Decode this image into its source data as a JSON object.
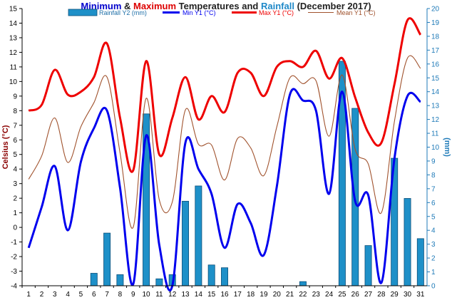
{
  "title": {
    "part1": "Minimum",
    "part2": " & ",
    "part3": "Maximum",
    "part4": " Temperatures and ",
    "part5": "Rainfall",
    "part6": " (December 2017)"
  },
  "colors": {
    "min": "#0000ee",
    "max": "#ee0000",
    "mean": "#a0522d",
    "rain": "#1e90c8",
    "rain_stroke": "#0b4f7a",
    "rain_axis": "#1e7ab8",
    "title_min": "#0000cc",
    "title_max": "#dd0000",
    "title_rain": "#1e88c8",
    "title_dark": "#222222"
  },
  "chart_data": {
    "type": "bar+line",
    "x": [
      1,
      2,
      3,
      4,
      5,
      6,
      7,
      8,
      9,
      10,
      11,
      12,
      13,
      14,
      15,
      16,
      17,
      18,
      19,
      20,
      21,
      22,
      23,
      24,
      25,
      26,
      27,
      28,
      29,
      30,
      31
    ],
    "y_left_label": "Celsius (°C)",
    "y_right_label": "(mm)",
    "y_left_range": [
      -4,
      15
    ],
    "y_right_range": [
      0,
      20
    ],
    "y_left_ticks": [
      -4,
      -3,
      -2,
      -1,
      0,
      1,
      2,
      3,
      4,
      5,
      6,
      7,
      8,
      9,
      10,
      11,
      12,
      13,
      14,
      15
    ],
    "y_right_ticks": [
      0,
      1,
      2,
      3,
      4,
      5,
      6,
      7,
      8,
      9,
      10,
      11,
      12,
      13,
      14,
      15,
      16,
      17,
      18,
      19,
      20
    ],
    "grid": false,
    "legend_position": "top",
    "legend": {
      "rain": "Rainfall Y2 (mm)",
      "min": "Min Y1 (°C)",
      "max": "Max Y1 (°C)",
      "mean": "Mean Y1 (°C)"
    },
    "rainfall_mm": [
      0,
      0,
      0,
      0,
      0,
      0.9,
      3.8,
      0.8,
      0,
      12.4,
      0.5,
      0.8,
      6.1,
      7.2,
      1.5,
      1.3,
      0,
      0,
      0,
      0,
      0,
      0.3,
      0,
      0,
      16.2,
      12.8,
      2.9,
      0,
      9.2,
      6.3,
      3.4
    ],
    "min_temp": [
      -1.4,
      1.4,
      4.2,
      -0.2,
      4.5,
      6.8,
      8.0,
      2.7,
      -3.9,
      6.3,
      -1.2,
      -4.0,
      5.8,
      4.0,
      2.3,
      -1.4,
      1.6,
      0.3,
      -1.9,
      2.8,
      9.1,
      8.7,
      8.0,
      2.3,
      9.3,
      1.8,
      2.2,
      -3.8,
      4.7,
      9.0,
      8.6
    ],
    "max_temp": [
      8.0,
      8.4,
      10.8,
      9.1,
      9.3,
      10.3,
      12.6,
      7.5,
      3.9,
      11.4,
      5.0,
      7.5,
      10.3,
      7.4,
      9.0,
      7.9,
      10.6,
      10.6,
      9.0,
      11.0,
      11.4,
      11.0,
      12.1,
      10.2,
      11.6,
      8.9,
      6.5,
      5.8,
      9.8,
      14.2,
      13.2
    ]
  }
}
